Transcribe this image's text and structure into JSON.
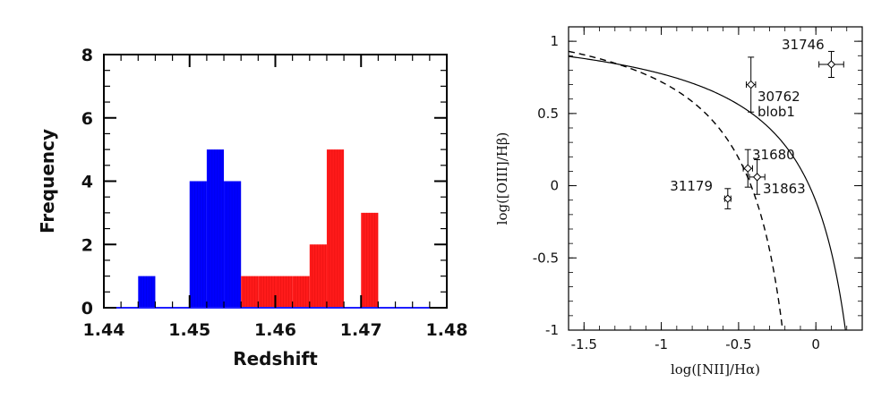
{
  "chart_data": [
    {
      "type": "bar",
      "xlabel": "Redshift",
      "ylabel": "Frequency",
      "xlim": [
        1.44,
        1.48
      ],
      "ylim": [
        0,
        8
      ],
      "x_ticks": [
        "1.44",
        "1.45",
        "1.46",
        "1.47",
        "1.48"
      ],
      "y_ticks": [
        "0",
        "2",
        "4",
        "6",
        "8"
      ],
      "bin_width": 0.002,
      "colors": {
        "blue": "#0000ff",
        "red": "#ff1a1a",
        "baseline": "#1f1fff"
      },
      "series": [
        {
          "color": "blue",
          "bins": [
            {
              "x0": 1.444,
              "value": 1
            },
            {
              "x0": 1.45,
              "value": 4
            },
            {
              "x0": 1.452,
              "value": 5
            },
            {
              "x0": 1.454,
              "value": 4
            }
          ]
        },
        {
          "color": "red",
          "bins": [
            {
              "x0": 1.456,
              "value": 1
            },
            {
              "x0": 1.458,
              "value": 1
            },
            {
              "x0": 1.46,
              "value": 1
            },
            {
              "x0": 1.462,
              "value": 1
            },
            {
              "x0": 1.464,
              "value": 2
            },
            {
              "x0": 1.466,
              "value": 5
            },
            {
              "x0": 1.47,
              "value": 3
            }
          ]
        }
      ],
      "baseline_range": [
        1.44,
        1.478
      ]
    },
    {
      "type": "scatter",
      "xlabel": "log([NII]/Hα)",
      "ylabel": "log([OIII]/Hβ)",
      "xlim": [
        -1.6,
        0.3
      ],
      "ylim": [
        -1,
        1.1
      ],
      "x_ticks": [
        "-1.5",
        "-1",
        "-0.5",
        "0"
      ],
      "y_ticks": [
        "-1",
        "-0.5",
        "0",
        "0.5",
        "1"
      ],
      "points": [
        {
          "label": "31746",
          "x": 0.1,
          "y": 0.84,
          "xerr": 0.08,
          "yerr": 0.09
        },
        {
          "label": "30762",
          "x": -0.42,
          "y": 0.7,
          "xerr": 0.03,
          "yerr": 0.19
        },
        {
          "label": "blob1",
          "x": null,
          "y": null
        },
        {
          "label": "31680",
          "x": -0.44,
          "y": 0.12,
          "xerr": 0.03,
          "yerr": 0.13
        },
        {
          "label": "31863",
          "x": -0.38,
          "y": 0.06,
          "xerr": 0.05,
          "yerr": 0.12
        },
        {
          "label": "31179",
          "x": -0.57,
          "y": -0.09,
          "xerr": 0.02,
          "yerr": 0.07
        }
      ],
      "curves": [
        {
          "style": "solid",
          "formula": "0.61/(x-0.47)+1.19"
        },
        {
          "style": "dashed",
          "formula": "0.61/(x-0.05)+1.3"
        }
      ]
    }
  ]
}
